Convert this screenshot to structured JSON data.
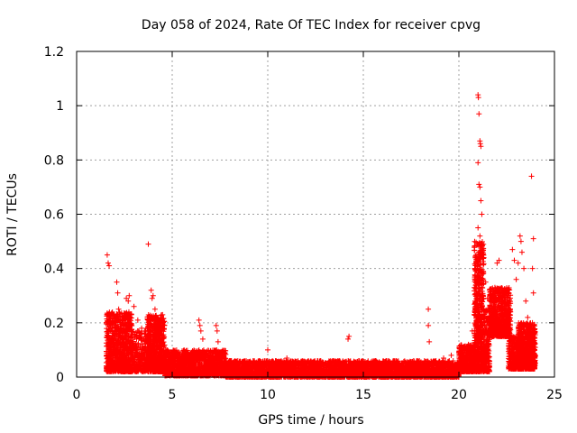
{
  "chart_data": {
    "type": "scatter",
    "title": "Day 058 of 2024, Rate Of TEC Index for receiver cpvg",
    "xlabel": "GPS time / hours",
    "ylabel": "ROTI / TECUs",
    "xlim": [
      0,
      25
    ],
    "ylim": [
      0,
      1.2
    ],
    "xticks": [
      0,
      5,
      10,
      15,
      20,
      25
    ],
    "yticks": [
      0,
      0.2,
      0.4,
      0.6,
      0.8,
      1,
      1.2
    ],
    "xtick_labels": [
      "0",
      "5",
      "10",
      "15",
      "20",
      "25"
    ],
    "ytick_labels": [
      "0",
      "0.2",
      "0.4",
      "0.6",
      "0.8",
      "1",
      "1.2"
    ],
    "grid": true,
    "marker": "+",
    "color": "#ff0000",
    "series": [
      {
        "name": "ROTI",
        "points": [
          [
            1.6,
            0.45
          ],
          [
            1.65,
            0.42
          ],
          [
            1.7,
            0.41
          ],
          [
            1.6,
            0.23
          ],
          [
            1.75,
            0.2
          ],
          [
            1.8,
            0.17
          ],
          [
            1.9,
            0.15
          ],
          [
            2.0,
            0.22
          ],
          [
            2.1,
            0.35
          ],
          [
            2.15,
            0.31
          ],
          [
            2.2,
            0.25
          ],
          [
            2.3,
            0.18
          ],
          [
            2.4,
            0.21
          ],
          [
            2.5,
            0.14
          ],
          [
            2.6,
            0.29
          ],
          [
            2.7,
            0.28
          ],
          [
            2.75,
            0.3
          ],
          [
            2.8,
            0.19
          ],
          [
            2.9,
            0.12
          ],
          [
            2.95,
            0.1
          ],
          [
            3.0,
            0.26
          ],
          [
            3.2,
            0.21
          ],
          [
            3.4,
            0.18
          ],
          [
            3.6,
            0.17
          ],
          [
            3.75,
            0.49
          ],
          [
            3.9,
            0.32
          ],
          [
            3.95,
            0.29
          ],
          [
            4.0,
            0.3
          ],
          [
            4.1,
            0.25
          ],
          [
            4.2,
            0.22
          ],
          [
            4.3,
            0.15
          ],
          [
            4.5,
            0.12
          ],
          [
            4.7,
            0.09
          ],
          [
            5.0,
            0.08
          ],
          [
            5.3,
            0.07
          ],
          [
            5.6,
            0.08
          ],
          [
            5.9,
            0.06
          ],
          [
            6.2,
            0.09
          ],
          [
            6.4,
            0.21
          ],
          [
            6.45,
            0.19
          ],
          [
            6.5,
            0.17
          ],
          [
            6.6,
            0.14
          ],
          [
            6.9,
            0.06
          ],
          [
            7.1,
            0.08
          ],
          [
            7.3,
            0.19
          ],
          [
            7.35,
            0.17
          ],
          [
            7.4,
            0.13
          ],
          [
            7.6,
            0.05
          ],
          [
            8.0,
            0.06
          ],
          [
            8.4,
            0.05
          ],
          [
            8.8,
            0.04
          ],
          [
            9.2,
            0.05
          ],
          [
            9.6,
            0.04
          ],
          [
            10.0,
            0.1
          ],
          [
            10.3,
            0.05
          ],
          [
            10.7,
            0.06
          ],
          [
            11.0,
            0.07
          ],
          [
            11.4,
            0.05
          ],
          [
            11.8,
            0.06
          ],
          [
            12.2,
            0.05
          ],
          [
            12.6,
            0.06
          ],
          [
            13.0,
            0.05
          ],
          [
            13.4,
            0.06
          ],
          [
            13.8,
            0.05
          ],
          [
            14.2,
            0.14
          ],
          [
            14.25,
            0.15
          ],
          [
            14.6,
            0.04
          ],
          [
            15.0,
            0.05
          ],
          [
            15.4,
            0.04
          ],
          [
            15.8,
            0.05
          ],
          [
            16.2,
            0.06
          ],
          [
            16.6,
            0.05
          ],
          [
            17.0,
            0.04
          ],
          [
            17.4,
            0.05
          ],
          [
            17.8,
            0.06
          ],
          [
            18.2,
            0.05
          ],
          [
            18.4,
            0.25
          ],
          [
            18.4,
            0.19
          ],
          [
            18.45,
            0.13
          ],
          [
            18.8,
            0.06
          ],
          [
            19.2,
            0.07
          ],
          [
            19.6,
            0.08
          ],
          [
            20.0,
            0.09
          ],
          [
            20.3,
            0.1
          ],
          [
            20.5,
            0.12
          ],
          [
            20.7,
            0.17
          ],
          [
            20.8,
            0.23
          ],
          [
            20.9,
            0.34
          ],
          [
            20.95,
            0.41
          ],
          [
            21.0,
            1.04
          ],
          [
            21.02,
            1.03
          ],
          [
            21.05,
            0.97
          ],
          [
            21.1,
            0.87
          ],
          [
            21.12,
            0.86
          ],
          [
            21.15,
            0.85
          ],
          [
            21.0,
            0.79
          ],
          [
            21.05,
            0.71
          ],
          [
            21.1,
            0.7
          ],
          [
            21.15,
            0.65
          ],
          [
            21.2,
            0.6
          ],
          [
            21.0,
            0.55
          ],
          [
            21.1,
            0.52
          ],
          [
            21.2,
            0.47
          ],
          [
            21.3,
            0.44
          ],
          [
            21.4,
            0.35
          ],
          [
            21.5,
            0.29
          ],
          [
            21.6,
            0.25
          ],
          [
            21.7,
            0.22
          ],
          [
            21.8,
            0.3
          ],
          [
            21.9,
            0.28
          ],
          [
            22.0,
            0.42
          ],
          [
            22.1,
            0.43
          ],
          [
            22.2,
            0.3
          ],
          [
            22.3,
            0.25
          ],
          [
            22.5,
            0.21
          ],
          [
            22.7,
            0.24
          ],
          [
            22.8,
            0.47
          ],
          [
            22.9,
            0.43
          ],
          [
            23.0,
            0.36
          ],
          [
            23.1,
            0.42
          ],
          [
            23.2,
            0.52
          ],
          [
            23.25,
            0.5
          ],
          [
            23.3,
            0.46
          ],
          [
            23.4,
            0.4
          ],
          [
            23.5,
            0.28
          ],
          [
            23.6,
            0.22
          ],
          [
            23.7,
            0.18
          ],
          [
            23.8,
            0.74
          ],
          [
            23.85,
            0.4
          ],
          [
            23.9,
            0.51
          ],
          [
            23.9,
            0.31
          ],
          [
            23.95,
            0.12
          ],
          [
            24.0,
            0.08
          ]
        ]
      }
    ],
    "bands": [
      {
        "from": 1.55,
        "to": 2.9,
        "ymin": 0.02,
        "ymax": 0.24,
        "n": 900
      },
      {
        "from": 2.9,
        "to": 3.7,
        "ymin": 0.02,
        "ymax": 0.17,
        "n": 250
      },
      {
        "from": 3.7,
        "to": 4.6,
        "ymin": 0.02,
        "ymax": 0.23,
        "n": 700
      },
      {
        "from": 4.6,
        "to": 7.8,
        "ymin": 0.005,
        "ymax": 0.1,
        "n": 1400
      },
      {
        "from": 7.8,
        "to": 20.0,
        "ymin": 0.0,
        "ymax": 0.06,
        "n": 4200
      },
      {
        "from": 20.0,
        "to": 20.8,
        "ymin": 0.02,
        "ymax": 0.12,
        "n": 400
      },
      {
        "from": 20.8,
        "to": 21.3,
        "ymin": 0.02,
        "ymax": 0.5,
        "n": 600
      },
      {
        "from": 21.3,
        "to": 21.6,
        "ymin": 0.02,
        "ymax": 0.25,
        "n": 200
      },
      {
        "from": 21.6,
        "to": 22.7,
        "ymin": 0.15,
        "ymax": 0.33,
        "n": 700
      },
      {
        "from": 22.6,
        "to": 23.3,
        "ymin": 0.03,
        "ymax": 0.15,
        "n": 400
      },
      {
        "from": 23.1,
        "to": 24.0,
        "ymin": 0.03,
        "ymax": 0.2,
        "n": 800
      }
    ]
  }
}
